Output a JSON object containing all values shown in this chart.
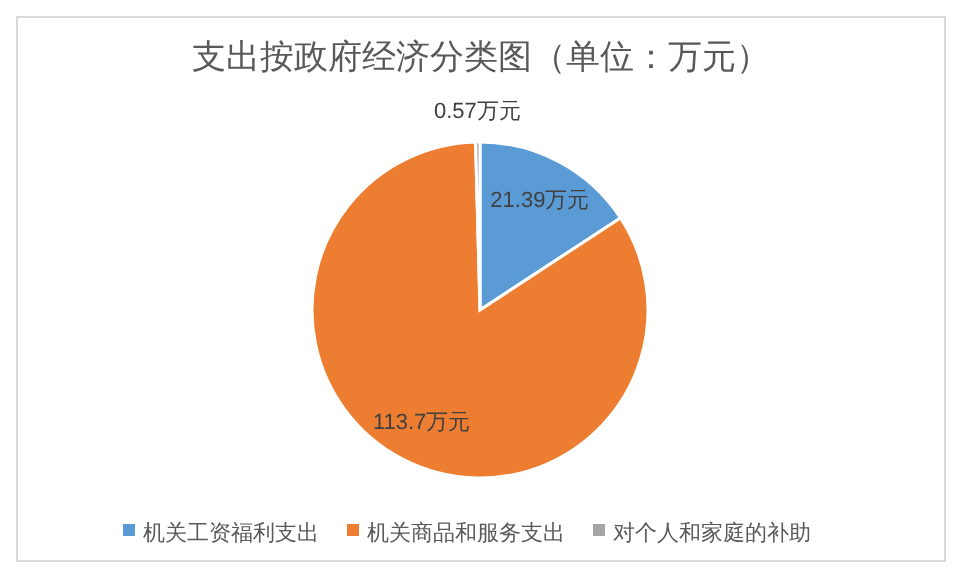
{
  "chart_data": {
    "type": "pie",
    "title": "支出按政府经济分类图（单位：万元）",
    "categories": [
      "机关工资福利支出",
      "机关商品和服务支出",
      "对个人和家庭的补助"
    ],
    "values": [
      21.39,
      113.7,
      0.57
    ],
    "colors": [
      "#5b9bd5",
      "#ed7d31",
      "#a5a5a5"
    ],
    "value_labels": [
      "21.39万元",
      "113.7万元",
      "0.57万元"
    ],
    "legend": "bottom"
  }
}
